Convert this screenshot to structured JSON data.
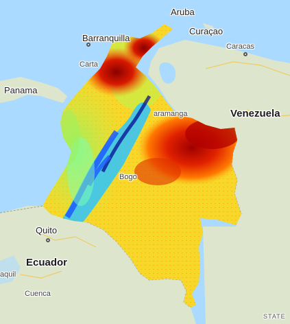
{
  "map": {
    "overlay": "heatmap raster over Colombia",
    "overlay_palette": [
      "#00008b",
      "#1e5aff",
      "#2ec4ff",
      "#7fffb0",
      "#c8f04a",
      "#f5e83a",
      "#ffb31a",
      "#ff4d00",
      "#c00000",
      "#8b0000"
    ],
    "water_color": "#aadaff",
    "land_color": "#dde6cc",
    "labels": {
      "aruba": "Aruba",
      "curacao": "Curaçao",
      "barranquilla": "Barranquilla",
      "caracas": "Caracas",
      "cartagena": "Carta",
      "panama": "Panama",
      "venezuela": "Venezuela",
      "bucaramanga": "aramanga",
      "bogota": "Bogo",
      "quito": "Quito",
      "ecuador": "Ecuador",
      "guayaquil": "aquil",
      "cuenca": "Cuenca",
      "estado": "STATE"
    }
  }
}
